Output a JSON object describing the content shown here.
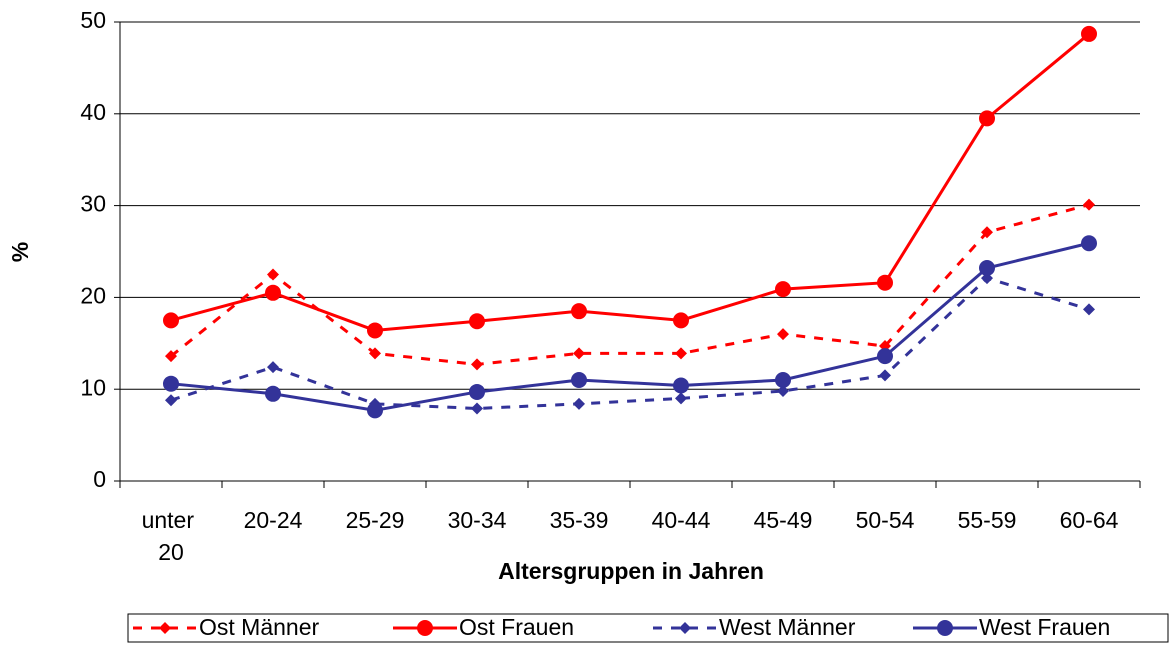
{
  "chart_data": {
    "type": "line",
    "xlabel": "Altersgruppen in Jahren",
    "ylabel": "%",
    "categories": [
      "unter 20",
      "20-24",
      "25-29",
      "30-34",
      "35-39",
      "40-44",
      "45-49",
      "50-54",
      "55-59",
      "60-64"
    ],
    "series": [
      {
        "name": "Ost Männer",
        "color": "#ff0000",
        "line": "dashed",
        "marker": "diamond",
        "values": [
          13.6,
          22.5,
          13.9,
          12.7,
          13.9,
          13.9,
          16,
          14.7,
          27.1,
          30.1
        ]
      },
      {
        "name": "Ost Frauen",
        "color": "#ff0000",
        "line": "solid",
        "marker": "circle",
        "values": [
          17.5,
          20.5,
          16.4,
          17.4,
          18.5,
          17.5,
          20.9,
          21.6,
          39.5,
          48.7
        ]
      },
      {
        "name": "West Männer",
        "color": "#333399",
        "line": "dashed",
        "marker": "diamond",
        "values": [
          8.8,
          12.4,
          8.4,
          7.9,
          8.4,
          9.0,
          9.8,
          11.5,
          22.1,
          18.7
        ]
      },
      {
        "name": "West Frauen",
        "color": "#333399",
        "line": "solid",
        "marker": "circle",
        "values": [
          10.6,
          9.5,
          7.7,
          9.7,
          11.0,
          10.4,
          11.0,
          13.6,
          23.2,
          25.9
        ]
      }
    ],
    "ylim": [
      0,
      50
    ],
    "yticks": [
      0,
      10,
      20,
      30,
      40,
      50
    ],
    "grid": true,
    "legend": "bottom"
  }
}
